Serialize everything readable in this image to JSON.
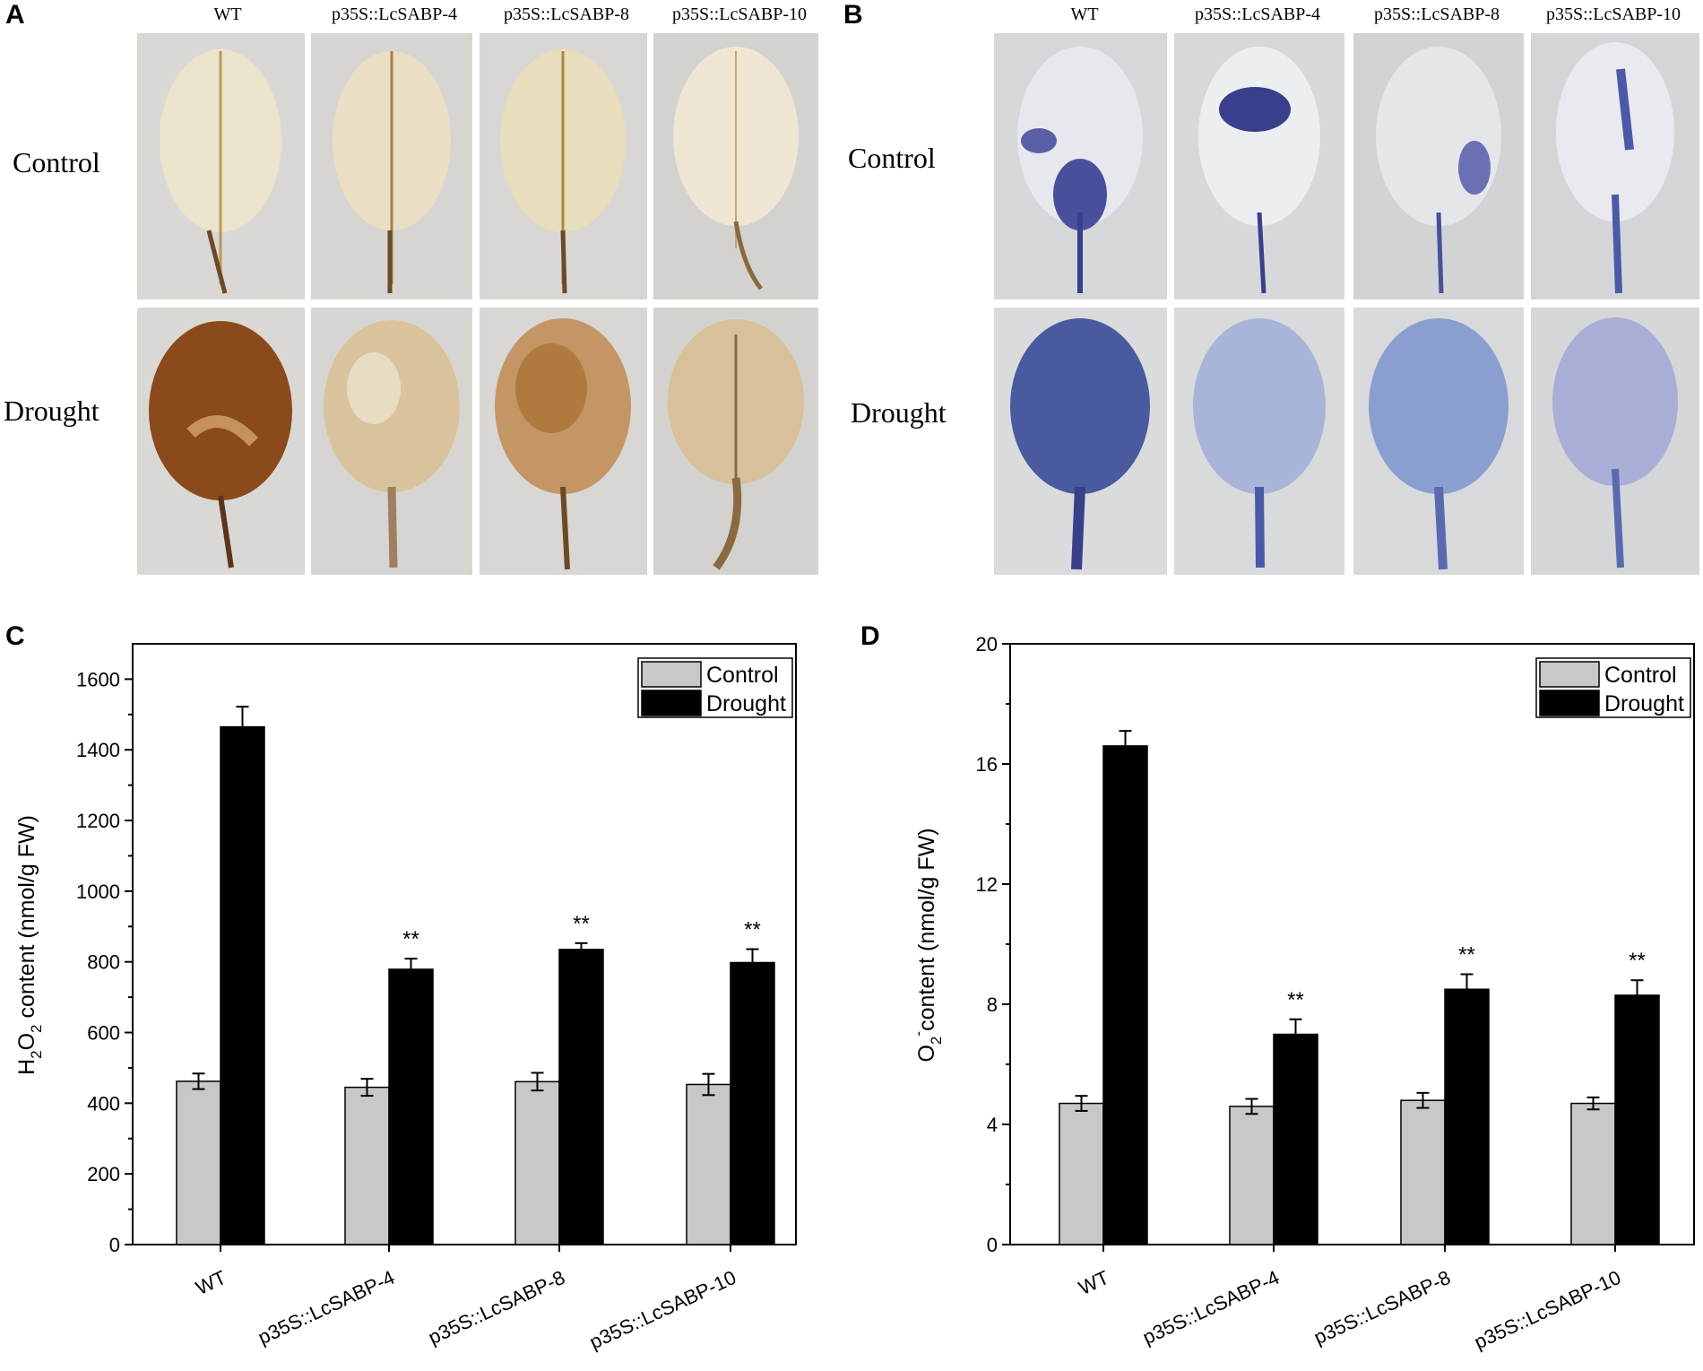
{
  "panels": {
    "A": {
      "letter": "A",
      "columns": [
        "WT",
        "p35S::LcSABP-4",
        "p35S::LcSABP-8",
        "p35S::LcSABP-10"
      ],
      "rows": [
        "Control",
        "Drought"
      ]
    },
    "B": {
      "letter": "B",
      "columns": [
        "WT",
        "p35S::LcSABP-4",
        "p35S::LcSABP-8",
        "p35S::LcSABP-10"
      ],
      "rows": [
        "Control",
        "Drought"
      ]
    }
  },
  "chart_data": [
    {
      "panel": "C",
      "type": "bar",
      "categories": [
        "WT",
        "p35S::LcSABP-4",
        "p35S::LcSABP-8",
        "p35S::LcSABP-10"
      ],
      "series": [
        {
          "name": "Control",
          "color": "#c8c8c8",
          "values": [
            462,
            445,
            461,
            453
          ],
          "errors": [
            22,
            24,
            25,
            30
          ]
        },
        {
          "name": "Drought",
          "color": "#000000",
          "values": [
            1465,
            779,
            835,
            798
          ],
          "errors": [
            57,
            30,
            18,
            38
          ]
        }
      ],
      "annotations": [
        "",
        "**",
        "**",
        "**"
      ],
      "ylabel": {
        "base": "H",
        "sub1": "2",
        "mid": "O",
        "sub2": "2",
        "rest": " content (nmol/g FW)"
      },
      "ylim": [
        0,
        1700
      ],
      "yticks": [
        0,
        200,
        400,
        600,
        800,
        1000,
        1200,
        1400,
        1600
      ],
      "legend": "top-right"
    },
    {
      "panel": "D",
      "type": "bar",
      "categories": [
        "WT",
        "p35S::LcSABP-4",
        "p35S::LcSABP-8",
        "p35S::LcSABP-10"
      ],
      "series": [
        {
          "name": "Control",
          "color": "#c8c8c8",
          "values": [
            4.7,
            4.6,
            4.8,
            4.7
          ],
          "errors": [
            0.25,
            0.25,
            0.25,
            0.2
          ]
        },
        {
          "name": "Drought",
          "color": "#000000",
          "values": [
            16.6,
            7.0,
            8.5,
            8.3
          ],
          "errors": [
            0.5,
            0.5,
            0.5,
            0.5
          ]
        }
      ],
      "annotations": [
        "",
        "**",
        "**",
        "**"
      ],
      "ylabel": {
        "base": "O",
        "sub1": "2",
        "sup": "-",
        "rest": "content (nmol/g FW)"
      },
      "ylim": [
        0,
        20
      ],
      "yticks": [
        0,
        4,
        8,
        12,
        16,
        20
      ],
      "legend": "top-right"
    }
  ]
}
